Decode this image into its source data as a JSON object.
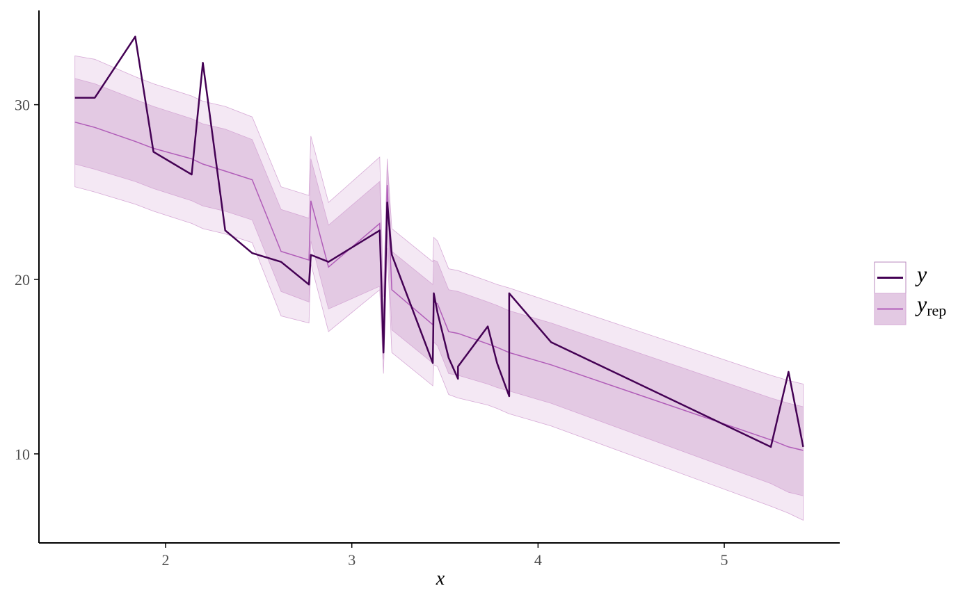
{
  "chart_data": {
    "type": "line",
    "title": "",
    "xlabel": "x",
    "ylabel": "",
    "xlim": [
      1.32,
      5.62
    ],
    "ylim": [
      4.9,
      35.4
    ],
    "xticks": [
      2,
      3,
      4,
      5
    ],
    "yticks": [
      10,
      20,
      30
    ],
    "grid": false,
    "legend_position": "right",
    "colors": {
      "y": "#440154",
      "yrep": "#b05cb8",
      "band_inner": "#e3c9e3",
      "band_outer": "#f4e8f4",
      "band_edge": "#d6a9d6",
      "axis": "#000000"
    },
    "legend": [
      {
        "key": "y",
        "label": "y",
        "sub": ""
      },
      {
        "key": "yrep",
        "label": "y",
        "sub": "rep"
      }
    ],
    "yrep_band": {
      "x": [
        1.513,
        1.62,
        1.837,
        1.935,
        2.14,
        2.2,
        2.32,
        2.465,
        2.62,
        2.77,
        2.78,
        2.875,
        3.15,
        3.17,
        3.19,
        3.215,
        3.435,
        3.44,
        3.46,
        3.52,
        3.57,
        3.73,
        3.78,
        3.845,
        4.07,
        5.25,
        5.345,
        5.424
      ],
      "median": [
        29.0,
        28.7,
        27.9,
        27.5,
        26.9,
        26.6,
        26.2,
        25.7,
        21.6,
        21.1,
        24.5,
        20.7,
        23.2,
        16.0,
        25.4,
        19.4,
        17.4,
        18.7,
        18.6,
        17.0,
        16.9,
        16.3,
        16.1,
        15.8,
        15.1,
        10.8,
        10.4,
        10.2
      ],
      "inner_lo": [
        26.6,
        26.3,
        25.6,
        25.2,
        24.5,
        24.2,
        23.9,
        23.4,
        19.3,
        18.7,
        22.2,
        18.3,
        19.6,
        15.4,
        22.9,
        17.1,
        15.2,
        16.4,
        16.2,
        14.6,
        14.5,
        14.0,
        13.8,
        13.6,
        12.9,
        8.3,
        7.8,
        7.6
      ],
      "inner_hi": [
        31.5,
        31.2,
        30.3,
        29.9,
        29.2,
        28.9,
        28.6,
        28.0,
        24.0,
        23.5,
        26.9,
        23.1,
        25.6,
        17.6,
        26.6,
        21.6,
        19.7,
        21.1,
        21.0,
        19.4,
        19.3,
        18.7,
        18.5,
        18.2,
        17.5,
        13.2,
        12.9,
        12.7
      ],
      "outer_lo": [
        25.3,
        25.0,
        24.3,
        23.9,
        23.2,
        22.9,
        22.6,
        22.1,
        17.9,
        17.5,
        20.9,
        17.0,
        19.4,
        14.6,
        21.8,
        15.8,
        13.9,
        15.1,
        15.0,
        13.4,
        13.2,
        12.8,
        12.6,
        12.3,
        11.6,
        7.0,
        6.6,
        6.2
      ],
      "outer_hi": [
        32.8,
        32.6,
        31.6,
        31.2,
        30.5,
        30.2,
        29.9,
        29.3,
        25.3,
        24.8,
        28.2,
        24.4,
        27.0,
        19.0,
        26.9,
        22.9,
        21.0,
        22.4,
        22.2,
        20.6,
        20.5,
        19.9,
        19.7,
        19.5,
        18.7,
        14.5,
        14.2,
        14.0
      ]
    },
    "y_series": {
      "x": [
        1.513,
        1.62,
        1.837,
        1.935,
        2.14,
        2.2,
        2.32,
        2.465,
        2.62,
        2.77,
        2.78,
        2.875,
        3.15,
        3.17,
        3.19,
        3.215,
        3.435,
        3.44,
        3.46,
        3.52,
        3.57,
        3.57,
        3.73,
        3.78,
        3.845,
        3.845,
        4.07,
        5.25,
        5.345,
        5.424
      ],
      "y": [
        30.4,
        30.4,
        33.9,
        27.3,
        26.0,
        32.4,
        22.8,
        21.5,
        21.0,
        19.7,
        21.4,
        21.0,
        22.8,
        15.8,
        24.4,
        21.4,
        15.2,
        19.2,
        18.1,
        15.5,
        14.3,
        15.0,
        17.3,
        15.2,
        13.3,
        19.2,
        16.4,
        10.4,
        14.7,
        10.4
      ]
    }
  }
}
